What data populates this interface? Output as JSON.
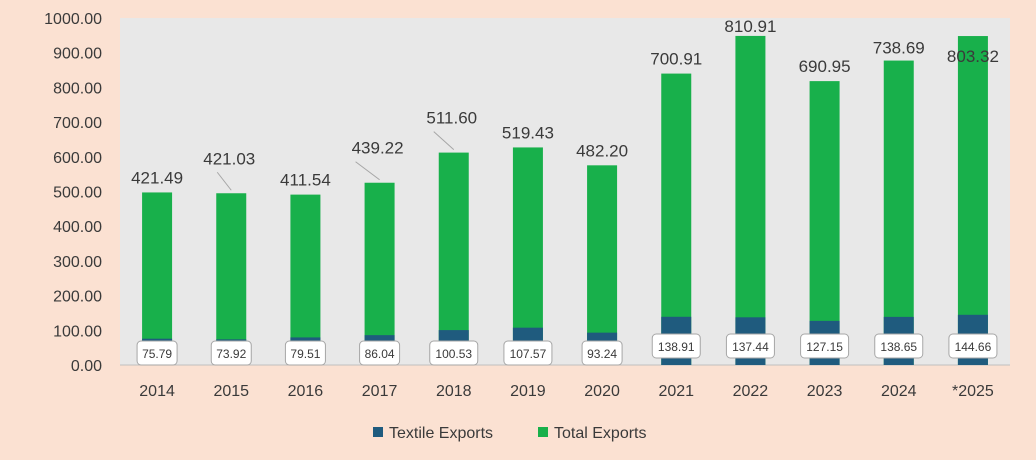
{
  "chart_data": {
    "type": "bar",
    "categories": [
      "2014",
      "2015",
      "2016",
      "2017",
      "2018",
      "2019",
      "2020",
      "2021",
      "2022",
      "2023",
      "2024",
      "*2025"
    ],
    "series": [
      {
        "name": "Textile Exports",
        "color": "#1f5b7e",
        "values": [
          75.79,
          73.92,
          79.51,
          86.04,
          100.53,
          107.57,
          93.24,
          138.91,
          137.44,
          127.15,
          138.65,
          144.66
        ],
        "labels": [
          "75.79",
          "73.92",
          "79.51",
          "86.04",
          "100.53",
          "107.57",
          "93.24",
          "138.91",
          "137.44",
          "127.15",
          "138.65",
          "144.66"
        ]
      },
      {
        "name": "Total Exports",
        "color": "#18b04b",
        "values": [
          421.49,
          421.03,
          411.54,
          439.22,
          511.6,
          519.43,
          482.2,
          700.91,
          810.91,
          690.95,
          738.69,
          803.32
        ],
        "labels": [
          "421.49",
          "421.03",
          "411.54",
          "439.22",
          "511.60",
          "519.43",
          "482.20",
          "700.91",
          "810.91",
          "690.95",
          "738.69",
          "803.32"
        ]
      }
    ],
    "stacked": true,
    "ylim": [
      0,
      1000
    ],
    "y_ticks": [
      "0.00",
      "100.00",
      "200.00",
      "300.00",
      "400.00",
      "500.00",
      "600.00",
      "700.00",
      "800.00",
      "900.00",
      "1000.00"
    ],
    "legend_position": "bottom",
    "plot_background": "#e8e8e8",
    "page_background": "#fbe1d2"
  }
}
